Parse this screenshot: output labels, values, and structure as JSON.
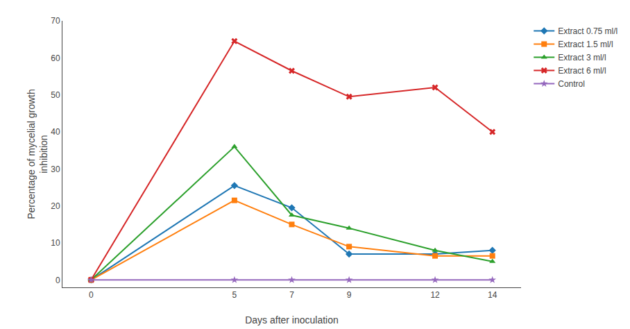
{
  "chart_data": {
    "type": "line",
    "x": [
      0,
      5,
      7,
      9,
      12,
      14
    ],
    "series": [
      {
        "name": "Extract 0.75 ml/l",
        "values": [
          0,
          25.5,
          19.5,
          7,
          7,
          8
        ],
        "marker": "diamond"
      },
      {
        "name": "Extract 1.5 ml/l",
        "values": [
          0,
          21.5,
          15,
          9,
          6.5,
          6.5
        ],
        "marker": "square"
      },
      {
        "name": "Extract 3 ml/l",
        "values": [
          0,
          36,
          17.5,
          14,
          8,
          5
        ],
        "marker": "triangle-up"
      },
      {
        "name": "Extract 6 ml/l",
        "values": [
          0,
          64.5,
          56.5,
          49.5,
          52,
          40
        ],
        "marker": "x"
      },
      {
        "name": "Control",
        "values": [
          0,
          0,
          0,
          0,
          0,
          0
        ],
        "marker": "star"
      }
    ],
    "xlabel": "Days after inoculation",
    "ylabel": "Percentage of mycelial growth\ninhibition",
    "xlim": [
      -1,
      15
    ],
    "xticks": [
      0,
      5,
      7,
      9,
      12,
      14
    ],
    "ylim": [
      -2,
      70
    ],
    "yticks": [
      0,
      10,
      20,
      30,
      40,
      50,
      60,
      70
    ],
    "grid": false,
    "legend": "right"
  }
}
